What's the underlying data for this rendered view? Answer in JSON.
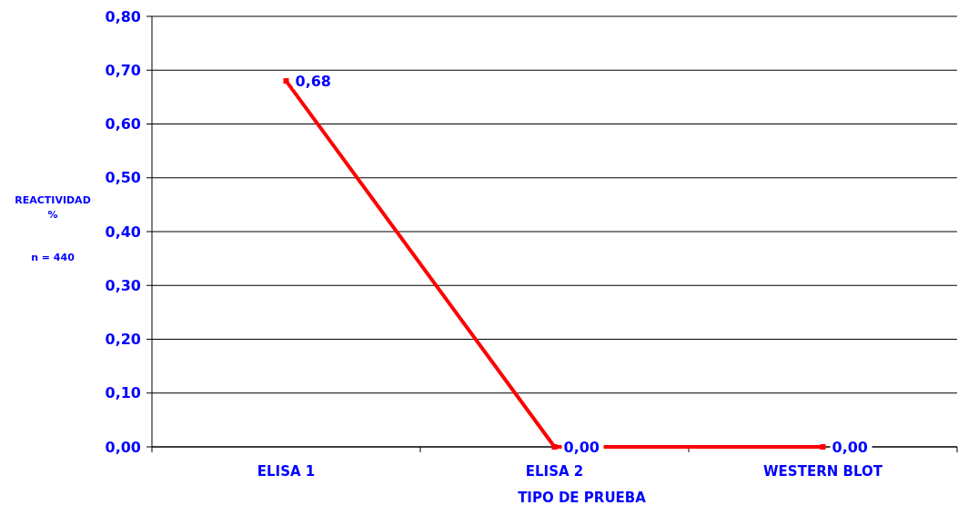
{
  "chart_data": {
    "type": "line",
    "xlabel": "TIPO DE PRUEBA",
    "ylabel": "REACTIVIDAD\n%",
    "annotations": [
      "n = 440"
    ],
    "categories": [
      "ELISA 1",
      "ELISA 2",
      "WESTERN BLOT"
    ],
    "series": [
      {
        "color": "#ff0000",
        "values": [
          0.68,
          0,
          0
        ],
        "value_labels": [
          "0,68",
          "0,00",
          "0,00"
        ]
      }
    ],
    "ylim": [
      0,
      0.8
    ],
    "yticks": [
      {
        "value": 0,
        "label": "0,00"
      },
      {
        "value": 0.1,
        "label": "0,10"
      },
      {
        "value": 0.2,
        "label": "0,20"
      },
      {
        "value": 0.3,
        "label": "0,30"
      },
      {
        "value": 0.4,
        "label": "0,40"
      },
      {
        "value": 0.5,
        "label": "0,50"
      },
      {
        "value": 0.6,
        "label": "0,60"
      },
      {
        "value": 0.7,
        "label": "0,70"
      },
      {
        "value": 0.8,
        "label": "0,80"
      }
    ],
    "grid": "y",
    "marker": "square",
    "line_style": "solid"
  }
}
